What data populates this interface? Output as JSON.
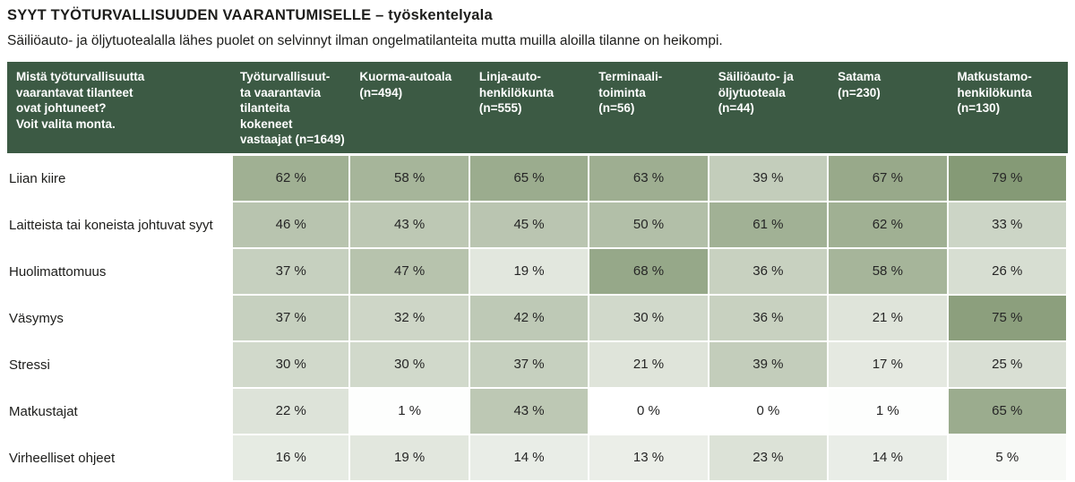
{
  "title": "SYYT TYÖTURVALLISUUDEN VAARANTUMISELLE – työskentelyala",
  "subtitle": "Säiliöauto- ja öljytuotealalla lähes puolet on selvinnyt ilman ongelmatilanteita mutta muilla aloilla tilanne on heikompi.",
  "chart_data": {
    "type": "heatmap",
    "question_header": "Mistä työturvallisuutta\nvaarantavat tilanteet\novat johtuneet?\nVoit valita monta.",
    "columns": [
      "Työturvallisuut-\nta vaarantavia\ntilanteita kokeneet\nvastaajat (n=1649)",
      "Kuorma-autoala\n(n=494)",
      "Linja-auto-\nhenkilökunta\n(n=555)",
      "Terminaali-\ntoiminta\n(n=56)",
      "Säiliöauto- ja\nöljytuoteala\n(n=44)",
      "Satama\n(n=230)",
      "Matkustamo-\nhenkilökunta\n(n=130)"
    ],
    "rows": [
      {
        "label": "Liian kiire",
        "values": [
          62,
          58,
          65,
          63,
          39,
          67,
          79
        ]
      },
      {
        "label": "Laitteista tai koneista johtuvat syyt",
        "values": [
          46,
          43,
          45,
          50,
          61,
          62,
          33
        ]
      },
      {
        "label": "Huolimattomuus",
        "values": [
          37,
          47,
          19,
          68,
          36,
          58,
          26
        ]
      },
      {
        "label": "Väsymys",
        "values": [
          37,
          32,
          42,
          30,
          36,
          21,
          75
        ]
      },
      {
        "label": "Stressi",
        "values": [
          30,
          30,
          37,
          21,
          39,
          17,
          25
        ]
      },
      {
        "label": "Matkustajat",
        "values": [
          22,
          1,
          43,
          0,
          0,
          1,
          65
        ]
      },
      {
        "label": "Virheelliset ohjeet",
        "values": [
          16,
          19,
          14,
          13,
          23,
          14,
          5
        ]
      }
    ],
    "value_suffix": " %",
    "value_range": [
      0,
      100
    ],
    "colors": {
      "header_bg": "#3c5a44",
      "header_text": "#ffffff",
      "cell_min": "#ffffff",
      "cell_max": "#657f51",
      "cell_text": "#262626"
    }
  }
}
